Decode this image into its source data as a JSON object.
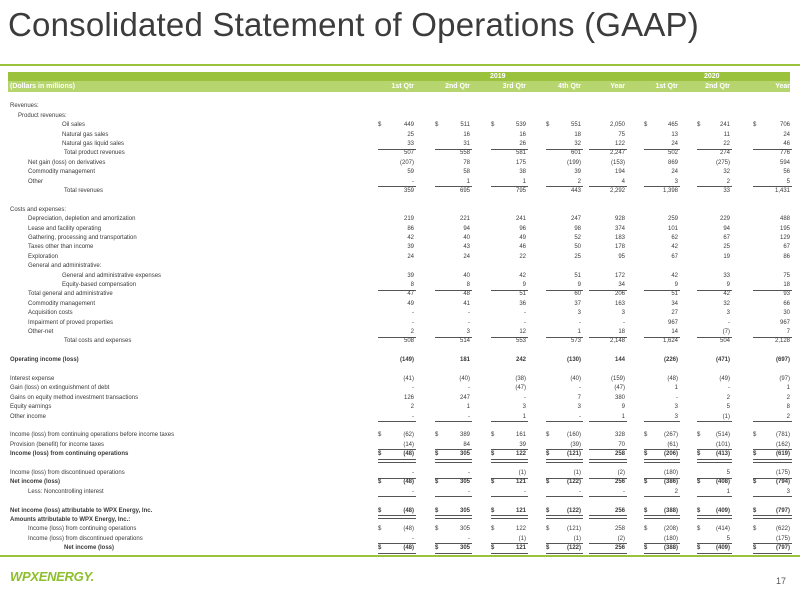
{
  "title": "Consolidated Statement of Operations (GAAP)",
  "header": {
    "year1": "2019",
    "year2": "2020",
    "units": "(Dollars in millions)",
    "cols": [
      "1st Qtr",
      "2nd Qtr",
      "3rd Qtr",
      "4th Qtr",
      "Year",
      "1st Qtr",
      "2nd Qtr",
      "Year"
    ]
  },
  "rows": [
    {
      "label": "",
      "values": []
    },
    {
      "label": "Revenues:",
      "indent": 0,
      "values": []
    },
    {
      "label": "Product revenues:",
      "indent": 1,
      "values": []
    },
    {
      "label": "Oil sales",
      "indent": 3,
      "values": [
        "449",
        "511",
        "539",
        "551",
        "2,050",
        "465",
        "241",
        "706"
      ],
      "dollar": true
    },
    {
      "label": "Natural gas sales",
      "indent": 3,
      "values": [
        "25",
        "16",
        "16",
        "18",
        "75",
        "13",
        "11",
        "24"
      ]
    },
    {
      "label": "Natural gas liquid sales",
      "indent": 3,
      "values": [
        "33",
        "31",
        "26",
        "32",
        "122",
        "24",
        "22",
        "46"
      ],
      "uline": true
    },
    {
      "label": "Total product revenues",
      "indent": 4,
      "values": [
        "507",
        "558",
        "581",
        "601",
        "2,247",
        "502",
        "274",
        "776"
      ]
    },
    {
      "label": "Net gain (loss) on derivatives",
      "indent": 2,
      "values": [
        "(207)",
        "78",
        "175",
        "(199)",
        "(153)",
        "869",
        "(275)",
        "594"
      ]
    },
    {
      "label": "Commodity management",
      "indent": 2,
      "values": [
        "59",
        "58",
        "38",
        "39",
        "194",
        "24",
        "32",
        "56"
      ]
    },
    {
      "label": "Other",
      "indent": 2,
      "values": [
        "-",
        "1",
        "1",
        "2",
        "4",
        "3",
        "2",
        "5"
      ],
      "uline": true
    },
    {
      "label": "Total revenues",
      "indent": 4,
      "values": [
        "359",
        "695",
        "795",
        "443",
        "2,292",
        "1,398",
        "33",
        "1,431"
      ]
    },
    {
      "label": "",
      "values": []
    },
    {
      "label": "Costs and expenses:",
      "indent": 0,
      "values": []
    },
    {
      "label": "Depreciation, depletion and amortization",
      "indent": 2,
      "values": [
        "219",
        "221",
        "241",
        "247",
        "928",
        "259",
        "229",
        "488"
      ]
    },
    {
      "label": "Lease and facility operating",
      "indent": 2,
      "values": [
        "86",
        "94",
        "96",
        "98",
        "374",
        "101",
        "94",
        "195"
      ]
    },
    {
      "label": "Gathering, processing and transportation",
      "indent": 2,
      "values": [
        "42",
        "40",
        "49",
        "52",
        "183",
        "62",
        "67",
        "129"
      ]
    },
    {
      "label": "Taxes other than income",
      "indent": 2,
      "values": [
        "39",
        "43",
        "46",
        "50",
        "178",
        "42",
        "25",
        "67"
      ]
    },
    {
      "label": "Exploration",
      "indent": 2,
      "values": [
        "24",
        "24",
        "22",
        "25",
        "95",
        "67",
        "19",
        "86"
      ]
    },
    {
      "label": "General and administrative:",
      "indent": 2,
      "values": []
    },
    {
      "label": "General and administrative expenses",
      "indent": 3,
      "values": [
        "39",
        "40",
        "42",
        "51",
        "172",
        "42",
        "33",
        "75"
      ]
    },
    {
      "label": "Equity-based compensation",
      "indent": 3,
      "values": [
        "8",
        "8",
        "9",
        "9",
        "34",
        "9",
        "9",
        "18"
      ],
      "uline": true
    },
    {
      "label": "Total general and administrative",
      "indent": 2,
      "values": [
        "47",
        "48",
        "51",
        "60",
        "206",
        "51",
        "42",
        "93"
      ]
    },
    {
      "label": "Commodity management",
      "indent": 2,
      "values": [
        "49",
        "41",
        "36",
        "37",
        "163",
        "34",
        "32",
        "66"
      ]
    },
    {
      "label": "Acquisition costs",
      "indent": 2,
      "values": [
        "-",
        "-",
        "-",
        "3",
        "3",
        "27",
        "3",
        "30"
      ]
    },
    {
      "label": "Impairment of proved properties",
      "indent": 2,
      "values": [
        "-",
        "-",
        "-",
        "-",
        "-",
        "967",
        "-",
        "967"
      ]
    },
    {
      "label": "Other-net",
      "indent": 2,
      "values": [
        "2",
        "3",
        "12",
        "1",
        "18",
        "14",
        "(7)",
        "7"
      ],
      "uline": true
    },
    {
      "label": "Total costs and expenses",
      "indent": 4,
      "values": [
        "508",
        "514",
        "553",
        "573",
        "2,148",
        "1,624",
        "504",
        "2,128"
      ]
    },
    {
      "label": "",
      "values": []
    },
    {
      "label": "Operating income (loss)",
      "indent": 0,
      "values": [
        "(149)",
        "181",
        "242",
        "(130)",
        "144",
        "(226)",
        "(471)",
        "(697)"
      ],
      "bold": true
    },
    {
      "label": "",
      "values": []
    },
    {
      "label": "Interest expense",
      "indent": 0,
      "values": [
        "(41)",
        "(40)",
        "(38)",
        "(40)",
        "(159)",
        "(48)",
        "(49)",
        "(97)"
      ]
    },
    {
      "label": "Gain (loss) on extinguishment of debt",
      "indent": 0,
      "values": [
        "-",
        "-",
        "(47)",
        "-",
        "(47)",
        "1",
        "-",
        "1"
      ]
    },
    {
      "label": "Gains on equity method investment transactions",
      "indent": 0,
      "values": [
        "126",
        "247",
        "-",
        "7",
        "380",
        "-",
        "2",
        "2"
      ]
    },
    {
      "label": "Equity earnings",
      "indent": 0,
      "values": [
        "2",
        "1",
        "3",
        "3",
        "9",
        "3",
        "5",
        "8"
      ]
    },
    {
      "label": "Other income",
      "indent": 0,
      "values": [
        "-",
        "-",
        "1",
        "-",
        "1",
        "3",
        "(1)",
        "2"
      ],
      "uline": true
    },
    {
      "label": "",
      "values": []
    },
    {
      "label": "Income (loss) from continuing operations before income taxes",
      "indent": 0,
      "values": [
        "(62)",
        "389",
        "161",
        "(160)",
        "328",
        "(267)",
        "(514)",
        "(781)"
      ],
      "dollar": true
    },
    {
      "label": "Provision (benefit) for income taxes",
      "indent": 0,
      "values": [
        "(14)",
        "84",
        "39",
        "(39)",
        "70",
        "(61)",
        "(101)",
        "(162)"
      ],
      "uline": true
    },
    {
      "label": "Income (loss) from continuing operations",
      "indent": 0,
      "values": [
        "(48)",
        "305",
        "122",
        "(121)",
        "258",
        "(206)",
        "(413)",
        "(619)"
      ],
      "bold": true,
      "dollar": true,
      "dline": true
    },
    {
      "label": "",
      "values": []
    },
    {
      "label": "Income (loss) from discontinued operations",
      "indent": 0,
      "values": [
        "-",
        "-",
        "(1)",
        "(1)",
        "(2)",
        "(180)",
        "5",
        "(175)"
      ],
      "uline": true
    },
    {
      "label": "Net income (loss)",
      "indent": 0,
      "values": [
        "(48)",
        "305",
        "121",
        "(122)",
        "256",
        "(386)",
        "(408)",
        "(794)"
      ],
      "bold": true,
      "dollar": true
    },
    {
      "label": "Less: Noncontrolling interest",
      "indent": 2,
      "values": [
        "-",
        "-",
        "-",
        "-",
        "-",
        "2",
        "1",
        "3"
      ],
      "uline": true
    },
    {
      "label": "",
      "values": []
    },
    {
      "label": "Net income (loss) attributable to WPX Energy, Inc.",
      "indent": 0,
      "values": [
        "(48)",
        "305",
        "121",
        "(122)",
        "256",
        "(388)",
        "(409)",
        "(797)"
      ],
      "bold": true,
      "dollar": true,
      "dline": true
    },
    {
      "label": "Amounts attributable to WPX Energy, Inc.:",
      "indent": 0,
      "values": [],
      "bold": true
    },
    {
      "label": "Income (loss) from continuing operations",
      "indent": 2,
      "values": [
        "(48)",
        "305",
        "122",
        "(121)",
        "258",
        "(208)",
        "(414)",
        "(622)"
      ],
      "dollar": true
    },
    {
      "label": "Income (loss) from discontinued operations",
      "indent": 2,
      "values": [
        "-",
        "-",
        "(1)",
        "(1)",
        "(2)",
        "(180)",
        "5",
        "(175)"
      ],
      "uline": true
    },
    {
      "label": "Net income (loss)",
      "indent": 4,
      "values": [
        "(48)",
        "305",
        "121",
        "(122)",
        "256",
        "(388)",
        "(409)",
        "(797)"
      ],
      "bold": true,
      "dollar": true,
      "dline": true
    }
  ],
  "logo": {
    "text": "WPXENERGY."
  },
  "page_number": "17",
  "colors": {
    "accent": "#9bc23c",
    "accent_light": "#b6d56e",
    "row_tint": "#eef3e1"
  }
}
